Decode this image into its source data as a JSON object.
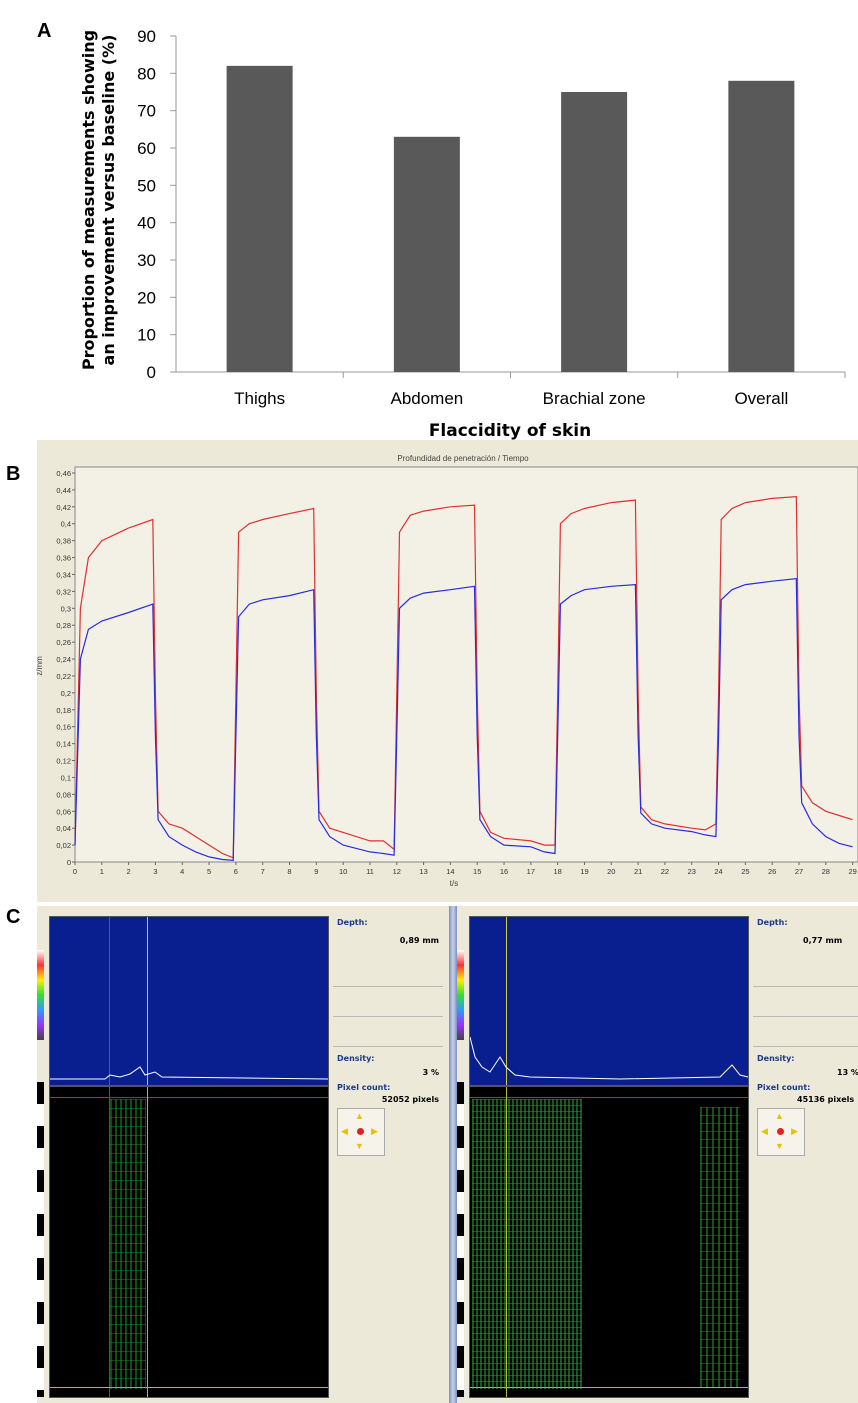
{
  "panels": {
    "a": "A",
    "b": "B",
    "c": "C"
  },
  "chart_data": [
    {
      "type": "bar",
      "title": "",
      "categories": [
        "Thighs",
        "Abdomen",
        "Brachial zone",
        "Overall"
      ],
      "values": [
        82,
        63,
        75,
        78
      ],
      "xlabel": "Flaccidity of skin",
      "ylabel_lines": [
        "Proportion of measurements showing",
        "an improvement versus baseline (%)"
      ],
      "ylim": [
        0,
        90
      ],
      "yticks": [
        0,
        10,
        20,
        30,
        40,
        50,
        60,
        70,
        80,
        90
      ],
      "grid": false,
      "bar_color": "#595959"
    },
    {
      "type": "line",
      "title": "Profundidad de penetración / Tiempo",
      "xlabel": "t/s",
      "ylabel": "z/mm",
      "xlim": [
        0,
        29
      ],
      "ylim": [
        0,
        0.46
      ],
      "xticks": [
        0,
        1,
        2,
        3,
        4,
        5,
        6,
        7,
        8,
        9,
        10,
        11,
        12,
        13,
        14,
        15,
        16,
        17,
        18,
        19,
        20,
        21,
        22,
        23,
        24,
        25,
        26,
        27,
        28,
        29
      ],
      "yticks": [
        "0",
        "0,02",
        "0,04",
        "0,06",
        "0,08",
        "0,1",
        "0,12",
        "0,14",
        "0,16",
        "0,18",
        "0,2",
        "0,22",
        "0,24",
        "0,26",
        "0,28",
        "0,3",
        "0,32",
        "0,34",
        "0,36",
        "0,38",
        "0,4",
        "0,42",
        "0,44",
        "0,46"
      ],
      "grid": false,
      "series": [
        {
          "color": "#e03030",
          "x": [
            0,
            0.2,
            0.5,
            1,
            2,
            2.9,
            3.0,
            3.1,
            3.5,
            4,
            4.5,
            5,
            5.5,
            5.9,
            6.0,
            6.1,
            6.5,
            7,
            8,
            8.9,
            9.0,
            9.1,
            9.5,
            10,
            11,
            11.5,
            11.9,
            12.0,
            12.1,
            12.5,
            13,
            14,
            14.9,
            15.0,
            15.1,
            15.5,
            16,
            17,
            17.5,
            17.9,
            18.0,
            18.1,
            18.5,
            19,
            20,
            20.9,
            21.0,
            21.1,
            21.5,
            22,
            23,
            23.5,
            23.9,
            24.0,
            24.1,
            24.5,
            25,
            26,
            26.9,
            27.0,
            27.1,
            27.5,
            28,
            28.5,
            29
          ],
          "y": [
            0.02,
            0.3,
            0.36,
            0.38,
            0.395,
            0.405,
            0.2,
            0.06,
            0.045,
            0.04,
            0.03,
            0.02,
            0.01,
            0.005,
            0.2,
            0.39,
            0.4,
            0.405,
            0.412,
            0.418,
            0.2,
            0.06,
            0.04,
            0.035,
            0.025,
            0.025,
            0.015,
            0.2,
            0.39,
            0.41,
            0.415,
            0.42,
            0.422,
            0.2,
            0.06,
            0.035,
            0.028,
            0.025,
            0.02,
            0.02,
            0.2,
            0.4,
            0.412,
            0.418,
            0.425,
            0.428,
            0.2,
            0.065,
            0.05,
            0.045,
            0.04,
            0.038,
            0.045,
            0.2,
            0.405,
            0.418,
            0.425,
            0.43,
            0.432,
            0.2,
            0.09,
            0.07,
            0.06,
            0.055,
            0.05
          ]
        },
        {
          "color": "#2a2ae0",
          "x": [
            0,
            0.2,
            0.5,
            1,
            2,
            2.9,
            3.0,
            3.1,
            3.5,
            4,
            4.5,
            5,
            5.5,
            5.9,
            6.0,
            6.1,
            6.5,
            7,
            8,
            8.9,
            9.0,
            9.1,
            9.5,
            10,
            11,
            11.5,
            11.9,
            12.0,
            12.1,
            12.5,
            13,
            14,
            14.9,
            15.0,
            15.1,
            15.5,
            16,
            17,
            17.5,
            17.9,
            18.0,
            18.1,
            18.5,
            19,
            20,
            20.9,
            21.0,
            21.1,
            21.5,
            22,
            23,
            23.5,
            23.9,
            24.0,
            24.1,
            24.5,
            25,
            26,
            26.9,
            27.0,
            27.1,
            27.5,
            28,
            28.5,
            29
          ],
          "y": [
            0.02,
            0.24,
            0.275,
            0.285,
            0.295,
            0.305,
            0.15,
            0.05,
            0.03,
            0.02,
            0.012,
            0.006,
            0.003,
            0.002,
            0.15,
            0.29,
            0.305,
            0.31,
            0.315,
            0.322,
            0.15,
            0.05,
            0.03,
            0.02,
            0.012,
            0.01,
            0.008,
            0.15,
            0.3,
            0.312,
            0.318,
            0.322,
            0.326,
            0.15,
            0.05,
            0.03,
            0.02,
            0.018,
            0.012,
            0.01,
            0.15,
            0.305,
            0.315,
            0.322,
            0.326,
            0.328,
            0.15,
            0.058,
            0.045,
            0.04,
            0.036,
            0.032,
            0.03,
            0.15,
            0.31,
            0.322,
            0.328,
            0.332,
            0.335,
            0.15,
            0.07,
            0.045,
            0.03,
            0.022,
            0.018
          ]
        }
      ]
    }
  ],
  "ultrasound": {
    "left": {
      "depth_label": "Depth:",
      "depth_value": "0,89 mm",
      "density_label": "Density:",
      "density_value": "3 %",
      "pixel_label": "Pixel count:",
      "pixel_value": "52052 pixels"
    },
    "right": {
      "depth_label": "Depth:",
      "depth_value": "0,77 mm",
      "density_label": "Density:",
      "density_value": "13 %",
      "pixel_label": "Pixel count:",
      "pixel_value": "45136 pixels"
    }
  }
}
